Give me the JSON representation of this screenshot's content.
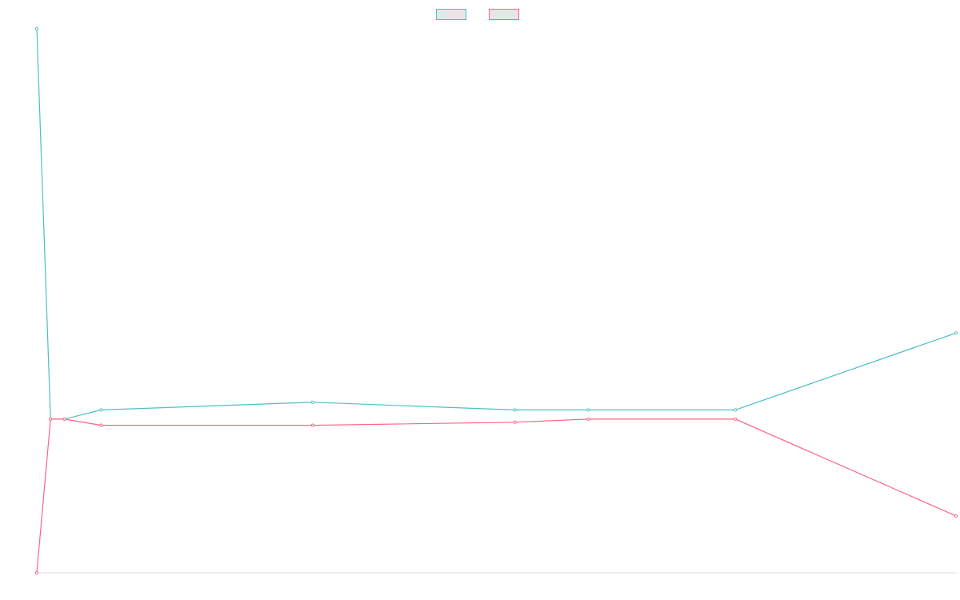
{
  "chart_data": {
    "type": "line",
    "title": "",
    "xlabel": "",
    "ylabel": "",
    "grid": false,
    "legend_position": "top-center",
    "ylim": [
      -1,
      2.54
    ],
    "series": [
      {
        "name": "",
        "color": "#4bc0c0",
        "values": [
          2.54,
          0,
          0,
          0.06,
          0.11,
          0.06,
          0.06,
          0.06,
          0.56
        ]
      },
      {
        "name": "",
        "color": "#ff6384",
        "values": [
          -1,
          0,
          0,
          -0.04,
          -0.04,
          -0.02,
          0,
          0,
          -0.63
        ]
      }
    ],
    "x": [
      0,
      0.015,
      0.03,
      0.07,
      0.3,
      0.52,
      0.6,
      0.76,
      1.0
    ]
  }
}
